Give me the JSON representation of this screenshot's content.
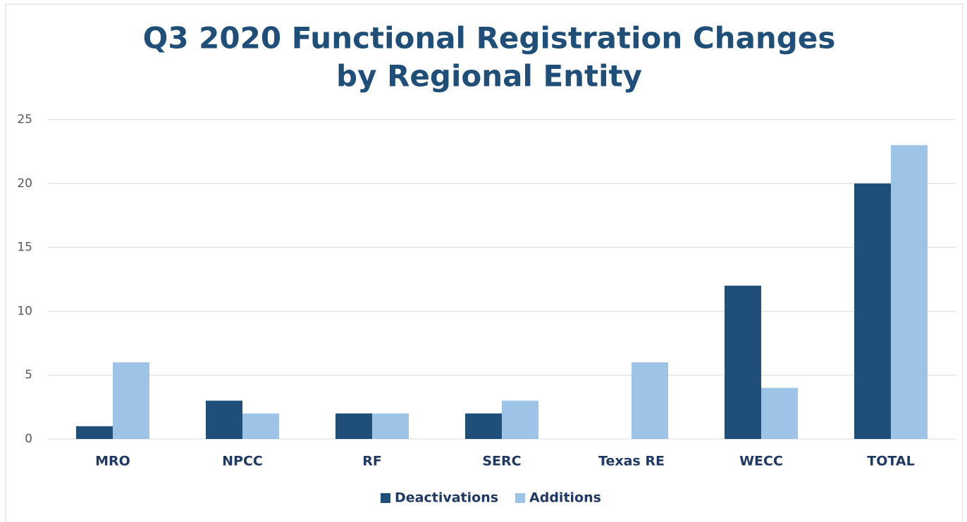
{
  "chart_data": {
    "type": "bar",
    "title": [
      "Q3 2020 Functional Registration Changes",
      "by Regional Entity"
    ],
    "categories": [
      "MRO",
      "NPCC",
      "RF",
      "SERC",
      "Texas RE",
      "WECC",
      "TOTAL"
    ],
    "series": [
      {
        "name": "Deactivations",
        "color": "#1f4e79",
        "values": [
          1,
          3,
          2,
          2,
          0,
          12,
          20
        ]
      },
      {
        "name": "Additions",
        "color": "#9dc3e6",
        "values": [
          6,
          2,
          2,
          3,
          6,
          4,
          23
        ]
      }
    ],
    "ylim": [
      0,
      25
    ],
    "yticks": [
      0,
      5,
      10,
      15,
      20,
      25
    ],
    "grid": true,
    "legend": "bottom"
  }
}
